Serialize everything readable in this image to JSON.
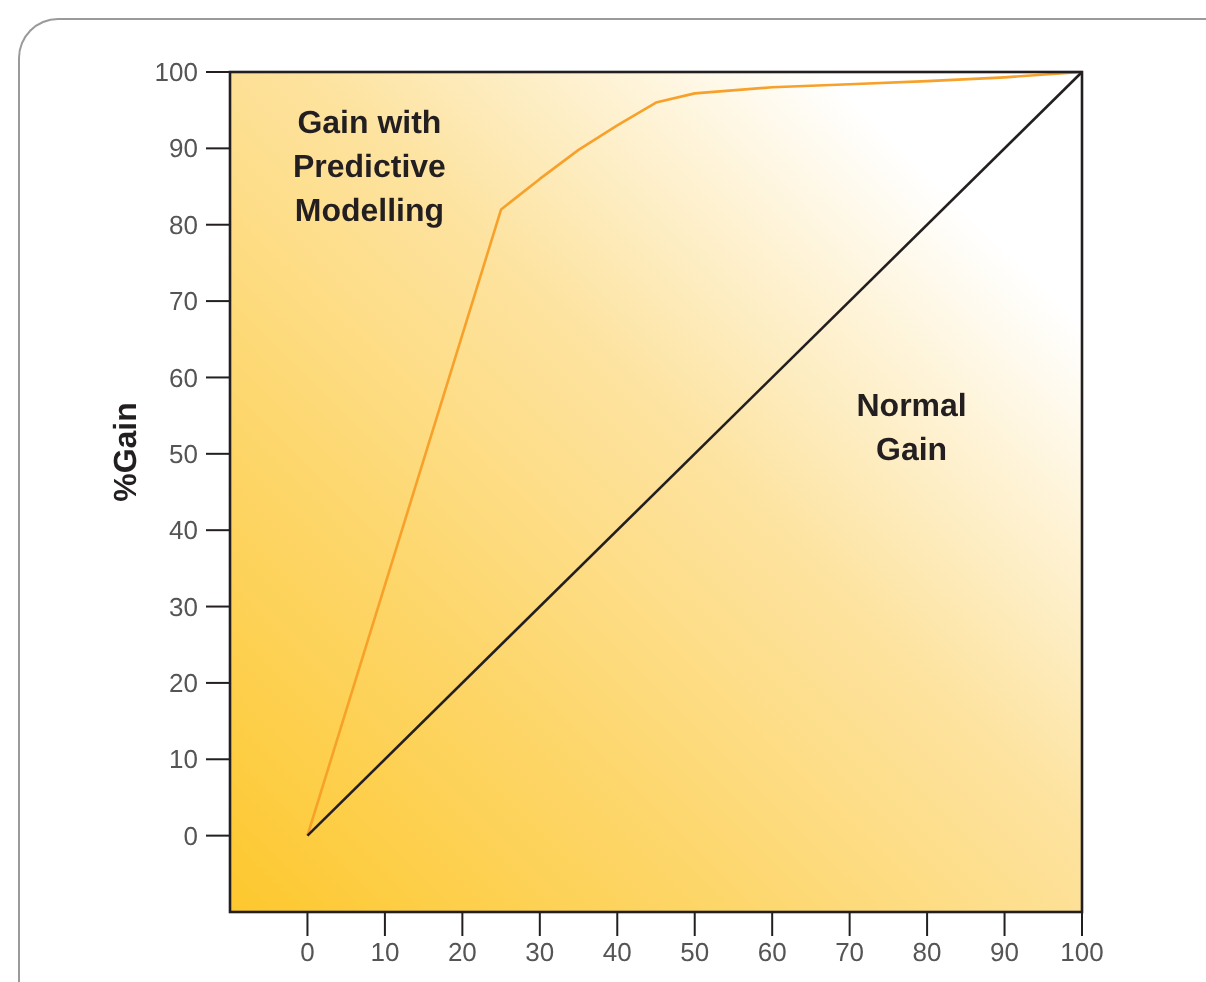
{
  "chart_data": {
    "type": "line",
    "ylabel": "%Gain",
    "xlim": [
      -10,
      100
    ],
    "ylim": [
      -10,
      100
    ],
    "xticks": [
      0,
      10,
      20,
      30,
      40,
      50,
      60,
      70,
      80,
      90,
      100
    ],
    "yticks": [
      0,
      10,
      20,
      30,
      40,
      50,
      60,
      70,
      80,
      90,
      100
    ],
    "x": [
      0,
      25,
      30,
      35,
      40,
      45,
      50,
      60,
      70,
      80,
      90,
      100
    ],
    "series": [
      {
        "name": "Gain with Predictive Modelling",
        "color": "#f7a12a",
        "values": [
          0,
          82,
          86,
          89.8,
          93,
          96,
          97.2,
          98,
          98.4,
          98.8,
          99.3,
          100
        ]
      },
      {
        "name": "Normal Gain",
        "color": "#231f20",
        "x": [
          0,
          100
        ],
        "values": [
          0,
          100
        ]
      }
    ],
    "grid": false,
    "marker": "none",
    "line_style": "solid"
  }
}
